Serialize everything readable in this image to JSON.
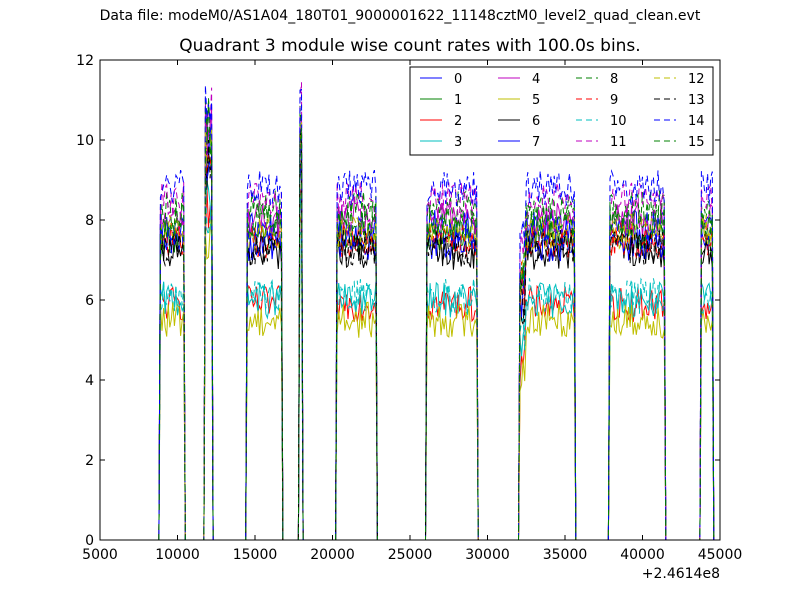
{
  "figure": {
    "suptitle": "Data file: modeM0/AS1A04_180T01_9000001622_11148cztM0_level2_quad_clean.evt"
  },
  "chart_data": {
    "type": "line",
    "title": "Quadrant 3 module wise count rates with 100.0s bins.",
    "xlabel": "",
    "ylabel": "",
    "x_offset_label": "+2.4614e8",
    "xlim": [
      5000,
      45000
    ],
    "ylim": [
      0,
      12
    ],
    "xticks": [
      5000,
      10000,
      15000,
      20000,
      25000,
      30000,
      35000,
      40000,
      45000
    ],
    "yticks": [
      0,
      2,
      4,
      6,
      8,
      10,
      12
    ],
    "grid": false,
    "legend_placement": "top-right",
    "legend_columns": 4,
    "segments": [
      {
        "start": 8900,
        "end": 10400
      },
      {
        "start": 11800,
        "end": 12200
      },
      {
        "start": 14500,
        "end": 16700
      },
      {
        "start": 17900,
        "end": 18000
      },
      {
        "start": 20300,
        "end": 22800
      },
      {
        "start": 26100,
        "end": 29300
      },
      {
        "start": 32100,
        "end": 35600
      },
      {
        "start": 37900,
        "end": 41400
      },
      {
        "start": 43800,
        "end": 44500
      }
    ],
    "series": [
      {
        "name": "0",
        "color": "#0000ff",
        "dash": "solid",
        "level": 7.8
      },
      {
        "name": "1",
        "color": "#008000",
        "dash": "solid",
        "level": 7.6
      },
      {
        "name": "2",
        "color": "#ff0000",
        "dash": "solid",
        "level": 5.9
      },
      {
        "name": "3",
        "color": "#00bfbf",
        "dash": "solid",
        "level": 6.0
      },
      {
        "name": "4",
        "color": "#bf00bf",
        "dash": "solid",
        "level": 8.0
      },
      {
        "name": "5",
        "color": "#bfbf00",
        "dash": "solid",
        "level": 5.5
      },
      {
        "name": "6",
        "color": "#000000",
        "dash": "solid",
        "level": 7.2
      },
      {
        "name": "7",
        "color": "#0000ff",
        "dash": "solid",
        "level": 7.4
      },
      {
        "name": "8",
        "color": "#008000",
        "dash": "dashed",
        "level": 8.3
      },
      {
        "name": "9",
        "color": "#ff0000",
        "dash": "dashed",
        "level": 7.5
      },
      {
        "name": "10",
        "color": "#00bfbf",
        "dash": "dashed",
        "level": 6.1
      },
      {
        "name": "11",
        "color": "#bf00bf",
        "dash": "dashed",
        "level": 8.5
      },
      {
        "name": "12",
        "color": "#bfbf00",
        "dash": "dashed",
        "level": 7.7
      },
      {
        "name": "13",
        "color": "#000000",
        "dash": "dashed",
        "level": 7.3
      },
      {
        "name": "14",
        "color": "#0000ff",
        "dash": "dashed",
        "level": 8.8
      },
      {
        "name": "15",
        "color": "#008000",
        "dash": "dashed",
        "level": 8.0
      }
    ]
  }
}
